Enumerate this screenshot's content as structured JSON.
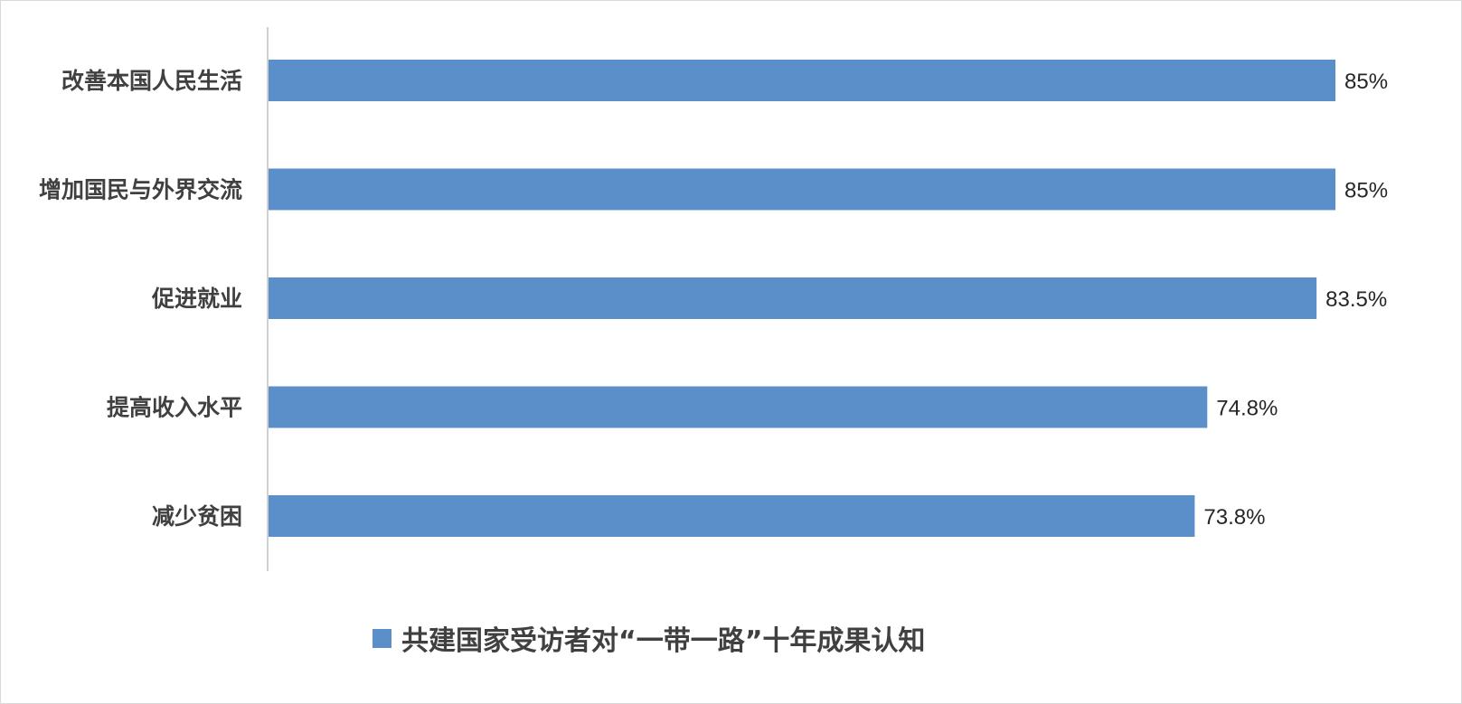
{
  "chart_data": {
    "type": "bar",
    "orientation": "horizontal",
    "categories": [
      "改善本国人民生活",
      "增加国民与外界交流",
      "促进就业",
      "提高收入水平",
      "减少贫困"
    ],
    "series": [
      {
        "name": "共建国家受访者对“一带一路”十年成果认知",
        "values": [
          85,
          85,
          83.5,
          74.8,
          73.8
        ],
        "color": "#5b8fc9"
      }
    ],
    "data_labels": [
      "85%",
      "85%",
      "83.5%",
      "74.8%",
      "73.8%"
    ],
    "unit": "%",
    "grid": false,
    "legend_position": "bottom"
  }
}
